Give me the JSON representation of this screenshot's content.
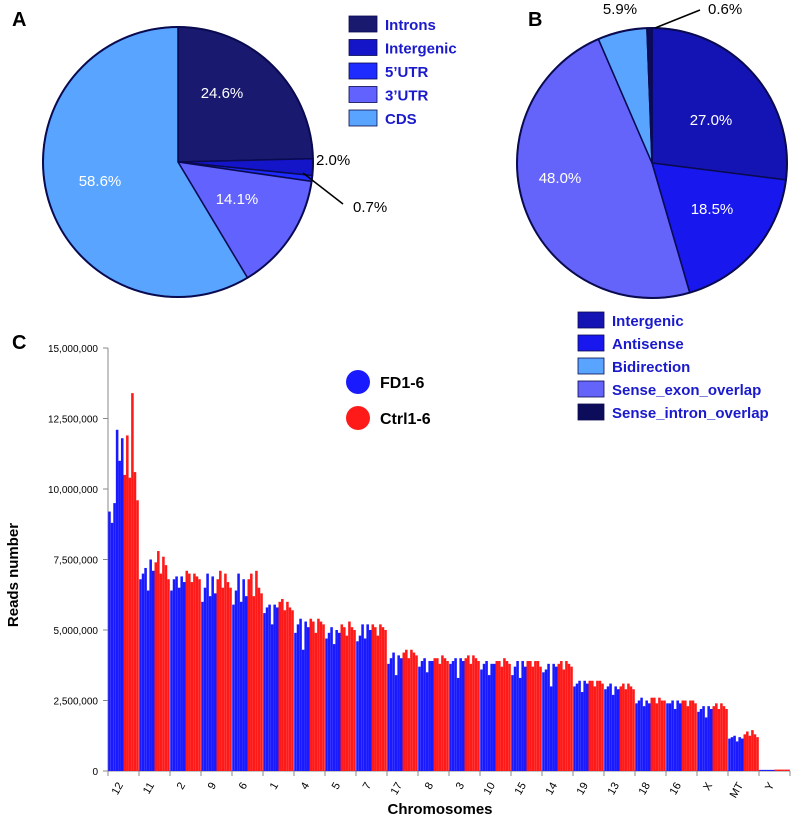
{
  "chart_data": [
    {
      "panel": "A",
      "type": "pie",
      "slices": [
        {
          "name": "Introns",
          "label": "24.6%",
          "value": 24.6,
          "color": "#191970"
        },
        {
          "name": "Intergenic",
          "label": "2.0%",
          "value": 2.0,
          "color": "#1414c8"
        },
        {
          "name": "5'UTR",
          "label": "0.7%",
          "value": 0.7,
          "color": "#1e2cff"
        },
        {
          "name": "3'UTR",
          "label": "14.1%",
          "value": 14.1,
          "color": "#6262ff"
        },
        {
          "name": "CDS",
          "label": "58.6%",
          "value": 58.6,
          "color": "#58a4ff"
        }
      ],
      "legend": [
        "Introns",
        "Intergenic",
        "5’UTR",
        "3’UTR",
        "CDS"
      ],
      "legend_colors": [
        "#191970",
        "#1414c8",
        "#1e2cff",
        "#6262ff",
        "#58a4ff"
      ]
    },
    {
      "panel": "B",
      "type": "pie",
      "slices": [
        {
          "name": "Intergenic",
          "label": "27.0%",
          "value": 27.0,
          "color": "#1414b4"
        },
        {
          "name": "Antisense",
          "label": "18.5%",
          "value": 18.5,
          "color": "#1717ee"
        },
        {
          "name": "Sense_exon_overlap",
          "label": "48.0%",
          "value": 48.0,
          "color": "#6464fa"
        },
        {
          "name": "Bidirection",
          "label": "5.9%",
          "value": 5.9,
          "color": "#58a4ff"
        },
        {
          "name": "Sense_intron_overlap",
          "label": "0.6%",
          "value": 0.6,
          "color": "#0c0c5a"
        }
      ],
      "legend": [
        "Intergenic",
        "Antisense",
        "Bidirection",
        "Sense_exon_overlap",
        "Sense_intron_overlap"
      ],
      "legend_colors": [
        "#1414b4",
        "#1717ee",
        "#58a4ff",
        "#6464fa",
        "#0c0c5a"
      ]
    },
    {
      "panel": "C",
      "type": "bar",
      "xlabel": "Chromosomes",
      "ylabel": "Reads number",
      "ylim": [
        0,
        15000000
      ],
      "yticks": [
        0,
        2500000,
        5000000,
        7500000,
        10000000,
        12500000,
        15000000
      ],
      "ytick_labels": [
        "0",
        "2,500,000",
        "5,000,000",
        "7,500,000",
        "10,000,000",
        "12,500,000",
        "15,000,000"
      ],
      "categories": [
        "12",
        "11",
        "2",
        "9",
        "6",
        "1",
        "4",
        "5",
        "7",
        "17",
        "8",
        "3",
        "10",
        "15",
        "14",
        "19",
        "13",
        "18",
        "16",
        "X",
        "MT",
        "Y"
      ],
      "series": [
        {
          "name": "FD1-6",
          "color": "#1a1aff",
          "values": [
            [
              9200000,
              8800000,
              9500000,
              12100000,
              11000000,
              11800000
            ],
            [
              6800000,
              7000000,
              7200000,
              6400000,
              7500000,
              7100000
            ],
            [
              6400000,
              6800000,
              6900000,
              6500000,
              6900000,
              6700000
            ],
            [
              6000000,
              6500000,
              7000000,
              6200000,
              6900000,
              6300000
            ],
            [
              5900000,
              6400000,
              7000000,
              6000000,
              6800000,
              6200000
            ],
            [
              5600000,
              5800000,
              5900000,
              5200000,
              5900000,
              5800000
            ],
            [
              4900000,
              5200000,
              5400000,
              4300000,
              5300000,
              5100000
            ],
            [
              4700000,
              4900000,
              5100000,
              4500000,
              5000000,
              4900000
            ],
            [
              4600000,
              4800000,
              5200000,
              4700000,
              5200000,
              5000000
            ],
            [
              3800000,
              4000000,
              4200000,
              3400000,
              4100000,
              4000000
            ],
            [
              3700000,
              3900000,
              4000000,
              3500000,
              3900000,
              3900000
            ],
            [
              3800000,
              3900000,
              4000000,
              3300000,
              4000000,
              3900000
            ],
            [
              3600000,
              3800000,
              3900000,
              3400000,
              3800000,
              3800000
            ],
            [
              3400000,
              3700000,
              3900000,
              3300000,
              3900000,
              3700000
            ],
            [
              3500000,
              3600000,
              3800000,
              3000000,
              3800000,
              3700000
            ],
            [
              3000000,
              3100000,
              3200000,
              2800000,
              3200000,
              3100000
            ],
            [
              2900000,
              3000000,
              3100000,
              2700000,
              3000000,
              2900000
            ],
            [
              2400000,
              2500000,
              2600000,
              2300000,
              2500000,
              2400000
            ],
            [
              2400000,
              2400000,
              2500000,
              2200000,
              2500000,
              2400000
            ],
            [
              2100000,
              2200000,
              2300000,
              1900000,
              2300000,
              2200000
            ],
            [
              1150000,
              1200000,
              1250000,
              1050000,
              1200000,
              1150000
            ],
            [
              40000,
              40000,
              40000,
              40000,
              40000,
              40000
            ]
          ]
        },
        {
          "name": "Ctrl1-6",
          "color": "#ff1a1a",
          "values": [
            [
              10500000,
              11900000,
              10400000,
              13400000,
              10600000,
              9600000
            ],
            [
              7400000,
              7800000,
              7000000,
              7600000,
              7300000,
              6800000
            ],
            [
              7100000,
              7000000,
              6700000,
              7000000,
              6900000,
              6800000
            ],
            [
              6800000,
              7100000,
              6500000,
              7000000,
              6700000,
              6500000
            ],
            [
              6800000,
              7000000,
              6200000,
              7100000,
              6500000,
              6300000
            ],
            [
              6000000,
              6100000,
              5700000,
              6000000,
              5800000,
              5700000
            ],
            [
              5400000,
              5300000,
              4900000,
              5400000,
              5300000,
              5200000
            ],
            [
              5200000,
              5100000,
              4800000,
              5300000,
              5100000,
              5000000
            ],
            [
              5200000,
              5100000,
              4800000,
              5200000,
              5100000,
              5000000
            ],
            [
              4200000,
              4300000,
              4000000,
              4300000,
              4200000,
              4100000
            ],
            [
              4000000,
              4000000,
              3800000,
              4100000,
              4000000,
              3900000
            ],
            [
              4000000,
              4100000,
              3800000,
              4100000,
              4000000,
              3900000
            ],
            [
              3900000,
              3900000,
              3700000,
              4000000,
              3900000,
              3800000
            ],
            [
              3900000,
              3900000,
              3700000,
              3900000,
              3900000,
              3700000
            ],
            [
              3800000,
              3900000,
              3600000,
              3900000,
              3800000,
              3700000
            ],
            [
              3200000,
              3200000,
              3000000,
              3200000,
              3200000,
              3100000
            ],
            [
              3000000,
              3100000,
              2900000,
              3100000,
              3000000,
              2900000
            ],
            [
              2600000,
              2600000,
              2400000,
              2600000,
              2500000,
              2500000
            ],
            [
              2500000,
              2500000,
              2300000,
              2500000,
              2500000,
              2400000
            ],
            [
              2300000,
              2400000,
              2200000,
              2400000,
              2300000,
              2200000
            ],
            [
              1300000,
              1400000,
              1250000,
              1450000,
              1300000,
              1200000
            ],
            [
              50000,
              50000,
              50000,
              50000,
              50000,
              50000
            ]
          ]
        }
      ]
    }
  ],
  "panel_letters": [
    "A",
    "B",
    "C"
  ]
}
